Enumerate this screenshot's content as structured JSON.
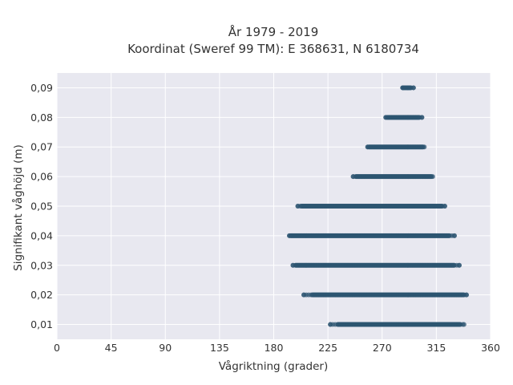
{
  "chart_data": {
    "type": "scatter",
    "title_line1": "År 1979 - 2019",
    "title_line2": "Koordinat (Sweref 99 TM): E 368631, N 6180734",
    "xlabel": "Vågriktning (grader)",
    "ylabel": "Signifikant våghöjd (m)",
    "xlim": [
      0,
      360
    ],
    "ylim": [
      0.005,
      0.095
    ],
    "x_ticks": [
      0,
      45,
      90,
      135,
      180,
      225,
      270,
      315,
      360
    ],
    "x_tick_labels": [
      "0",
      "45",
      "90",
      "135",
      "180",
      "225",
      "270",
      "315",
      "360"
    ],
    "y_ticks": [
      0.01,
      0.02,
      0.03,
      0.04,
      0.05,
      0.06,
      0.07,
      0.08,
      0.09
    ],
    "y_tick_labels": [
      "0,01",
      "0,02",
      "0,03",
      "0,04",
      "0,05",
      "0,06",
      "0,07",
      "0,08",
      "0,09"
    ],
    "grid": true,
    "marker_color": "#2e5672",
    "background_color": "#e8e8f0",
    "series": [
      {
        "y": 0.01,
        "x_min": 227,
        "x_max": 338,
        "dense_min": 233,
        "dense_max": 335
      },
      {
        "y": 0.02,
        "x_min": 205,
        "x_max": 340,
        "dense_min": 212,
        "dense_max": 338
      },
      {
        "y": 0.03,
        "x_min": 196,
        "x_max": 334,
        "dense_min": 198,
        "dense_max": 330
      },
      {
        "y": 0.04,
        "x_min": 193,
        "x_max": 330,
        "dense_min": 194,
        "dense_max": 326
      },
      {
        "y": 0.05,
        "x_min": 200,
        "x_max": 322,
        "dense_min": 203,
        "dense_max": 320
      },
      {
        "y": 0.06,
        "x_min": 246,
        "x_max": 312,
        "dense_min": 248,
        "dense_max": 311
      },
      {
        "y": 0.07,
        "x_min": 258,
        "x_max": 305,
        "dense_min": 259,
        "dense_max": 304
      },
      {
        "y": 0.08,
        "x_min": 273,
        "x_max": 303,
        "dense_min": 274,
        "dense_max": 301
      },
      {
        "y": 0.09,
        "x_min": 287,
        "x_max": 296,
        "dense_min": 287,
        "dense_max": 294
      }
    ]
  }
}
